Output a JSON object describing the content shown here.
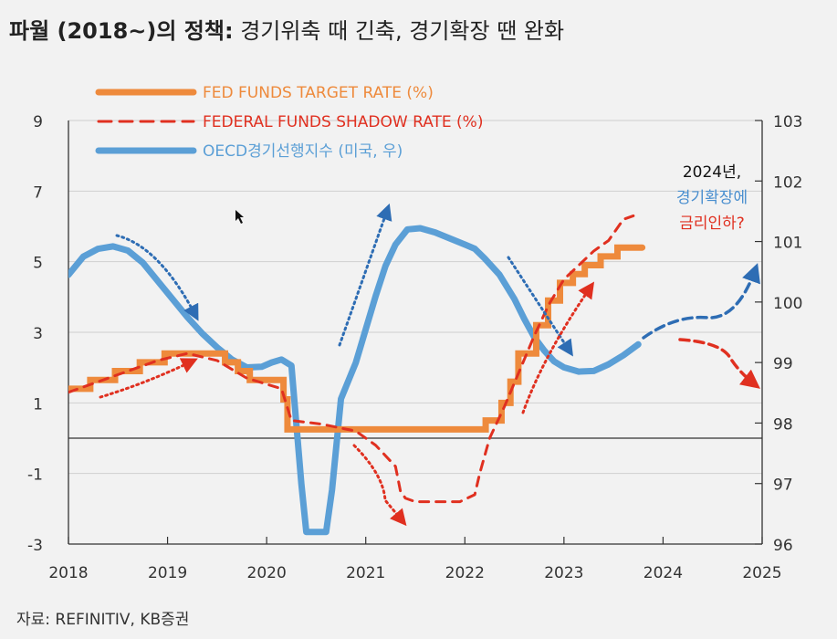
{
  "title": {
    "bold": "파월 (2018~)의 정책:",
    "rest": " 경기위축 때 긴축, 경기확장 땐 완화"
  },
  "source": "자료: REFINITIV, KB증권",
  "colors": {
    "fed_target": "#ee8a3c",
    "shadow": "#e03020",
    "oecd": "#5b9fd6",
    "arrow_blue": "#2e6db4",
    "arrow_red": "#e03020"
  },
  "annotation": {
    "line1": "2024년,",
    "line2": "경기확장에",
    "line3": "금리인하?"
  },
  "chart_data": {
    "type": "line",
    "x_range": [
      2018,
      2025
    ],
    "x_ticks": [
      "2018",
      "2019",
      "2020",
      "2021",
      "2022",
      "2023",
      "2024",
      "2025"
    ],
    "y_left": {
      "range": [
        -3,
        9
      ],
      "ticks": [
        "9",
        "7",
        "5",
        "3",
        "1",
        "-1",
        "-3"
      ]
    },
    "y_right": {
      "range": [
        96,
        103
      ],
      "ticks": [
        "103",
        "102",
        "101",
        "100",
        "99",
        "98",
        "97",
        "96"
      ]
    },
    "legend_position": "top-left",
    "series": [
      {
        "name": "FED FUNDS TARGET RATE (%)",
        "axis": "left",
        "style": "step",
        "points": [
          [
            2018.0,
            1.4
          ],
          [
            2018.22,
            1.65
          ],
          [
            2018.47,
            1.9
          ],
          [
            2018.72,
            2.15
          ],
          [
            2018.97,
            2.4
          ],
          [
            2019.58,
            2.15
          ],
          [
            2019.71,
            1.9
          ],
          [
            2019.83,
            1.65
          ],
          [
            2020.17,
            1.1
          ],
          [
            2020.21,
            0.25
          ],
          [
            2022.21,
            0.5
          ],
          [
            2022.37,
            1.0
          ],
          [
            2022.46,
            1.6
          ],
          [
            2022.54,
            2.4
          ],
          [
            2022.72,
            3.2
          ],
          [
            2022.84,
            3.9
          ],
          [
            2022.96,
            4.4
          ],
          [
            2023.09,
            4.65
          ],
          [
            2023.21,
            4.9
          ],
          [
            2023.37,
            5.15
          ],
          [
            2023.54,
            5.4
          ],
          [
            2023.79,
            5.4
          ]
        ]
      },
      {
        "name": "FEDERAL FUNDS SHADOW RATE (%)",
        "axis": "left",
        "style": "dashed",
        "points": [
          [
            2018.0,
            1.3
          ],
          [
            2018.3,
            1.6
          ],
          [
            2018.6,
            1.9
          ],
          [
            2018.9,
            2.2
          ],
          [
            2019.2,
            2.4
          ],
          [
            2019.5,
            2.2
          ],
          [
            2019.8,
            1.7
          ],
          [
            2020.15,
            1.4
          ],
          [
            2020.25,
            0.5
          ],
          [
            2020.55,
            0.4
          ],
          [
            2020.9,
            0.2
          ],
          [
            2021.1,
            -0.2
          ],
          [
            2021.3,
            -0.8
          ],
          [
            2021.35,
            -1.5
          ],
          [
            2021.4,
            -1.7
          ],
          [
            2021.5,
            -1.8
          ],
          [
            2021.7,
            -1.8
          ],
          [
            2021.95,
            -1.8
          ],
          [
            2022.1,
            -1.6
          ],
          [
            2022.15,
            -1.0
          ],
          [
            2022.25,
            0.0
          ],
          [
            2022.4,
            0.9
          ],
          [
            2022.55,
            1.9
          ],
          [
            2022.7,
            2.9
          ],
          [
            2022.85,
            3.8
          ],
          [
            2023.0,
            4.5
          ],
          [
            2023.15,
            4.9
          ],
          [
            2023.3,
            5.3
          ],
          [
            2023.45,
            5.6
          ],
          [
            2023.6,
            6.2
          ],
          [
            2023.7,
            6.3
          ]
        ]
      },
      {
        "name": "OECD경기선행지수 (미국, 우)",
        "axis": "right",
        "style": "solid",
        "points": [
          [
            2018.0,
            100.45
          ],
          [
            2018.15,
            100.75
          ],
          [
            2018.3,
            100.88
          ],
          [
            2018.45,
            100.92
          ],
          [
            2018.6,
            100.85
          ],
          [
            2018.75,
            100.65
          ],
          [
            2018.9,
            100.35
          ],
          [
            2019.05,
            100.05
          ],
          [
            2019.2,
            99.75
          ],
          [
            2019.35,
            99.48
          ],
          [
            2019.5,
            99.25
          ],
          [
            2019.65,
            99.05
          ],
          [
            2019.8,
            98.92
          ],
          [
            2019.95,
            98.93
          ],
          [
            2020.05,
            99.0
          ],
          [
            2020.15,
            99.05
          ],
          [
            2020.25,
            98.95
          ],
          [
            2020.35,
            97.0
          ],
          [
            2020.4,
            96.2
          ],
          [
            2020.6,
            96.2
          ],
          [
            2020.66,
            96.9
          ],
          [
            2020.75,
            98.4
          ],
          [
            2020.9,
            99.0
          ],
          [
            2021.0,
            99.55
          ],
          [
            2021.1,
            100.1
          ],
          [
            2021.2,
            100.6
          ],
          [
            2021.3,
            100.95
          ],
          [
            2021.42,
            101.2
          ],
          [
            2021.55,
            101.22
          ],
          [
            2021.7,
            101.15
          ],
          [
            2021.85,
            101.05
          ],
          [
            2022.0,
            100.95
          ],
          [
            2022.1,
            100.88
          ],
          [
            2022.2,
            100.72
          ],
          [
            2022.35,
            100.45
          ],
          [
            2022.5,
            100.05
          ],
          [
            2022.6,
            99.72
          ],
          [
            2022.7,
            99.42
          ],
          [
            2022.8,
            99.2
          ],
          [
            2022.9,
            99.02
          ],
          [
            2023.0,
            98.92
          ],
          [
            2023.15,
            98.85
          ],
          [
            2023.3,
            98.86
          ],
          [
            2023.45,
            98.97
          ],
          [
            2023.6,
            99.12
          ],
          [
            2023.75,
            99.3
          ]
        ]
      }
    ]
  }
}
